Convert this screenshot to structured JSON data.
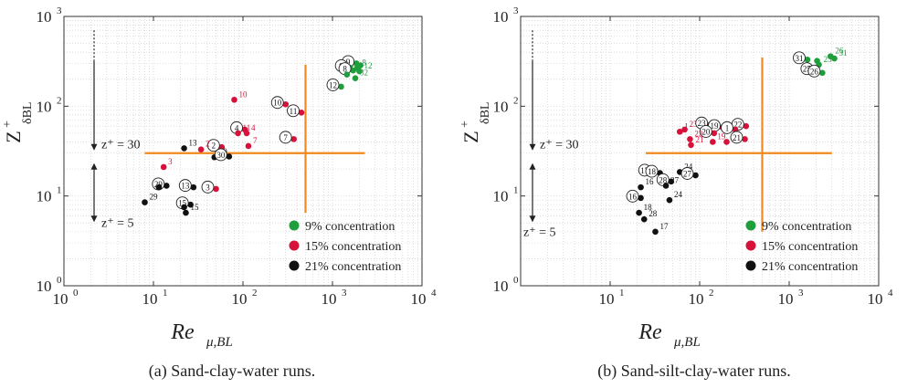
{
  "colors": {
    "c9": "#1f9e3c",
    "c15": "#d6113a",
    "c21": "#111111",
    "line": "#f08a1c",
    "grid": "#cfcfcf",
    "frame": "#333333"
  },
  "chart_data": [
    {
      "type": "scatter",
      "caption": "(a) Sand-clay-water runs.",
      "xlabel": "Re_{μ,BL}",
      "ylabel": "Z^+_{δBL}",
      "xscale": "log",
      "yscale": "log",
      "xlim": [
        1,
        10000
      ],
      "ylim": [
        1,
        1000
      ],
      "x_ticks": [
        "10^0",
        "10^1",
        "10^2",
        "10^3",
        "10^4"
      ],
      "y_ticks": [
        "10^0",
        "10^1",
        "10^2",
        "10^3"
      ],
      "grid": true,
      "legend_position": "bottom-right",
      "annotations": {
        "z30": "z⁺ = 30",
        "z5": "z⁺ = 5"
      },
      "reference_lines": {
        "horizontal": {
          "y": 30,
          "x_from": 8,
          "x_to": 2300
        },
        "vertical": {
          "x": 500,
          "y_from": 6.5,
          "y_to": 290
        }
      },
      "series": [
        {
          "name": "9% concentration",
          "color": "#1f9e3c",
          "points": [
            {
              "x": 1850,
              "y": 300,
              "label": "9",
              "circled": true
            },
            {
              "x": 1550,
              "y": 270,
              "label": "9",
              "circled": true
            },
            {
              "x": 1900,
              "y": 265,
              "label": "8",
              "circled": false
            },
            {
              "x": 1700,
              "y": 250,
              "label": "8",
              "circled": true
            },
            {
              "x": 2000,
              "y": 245,
              "label": "12",
              "circled": false
            },
            {
              "x": 1450,
              "y": 225,
              "label": "9",
              "circled": false
            },
            {
              "x": 1800,
              "y": 205,
              "label": "32",
              "circled": false
            },
            {
              "x": 1250,
              "y": 165,
              "label": "12",
              "circled": true
            },
            {
              "x": 2050,
              "y": 285,
              "label": "",
              "circled": false
            }
          ]
        },
        {
          "name": "15% concentration",
          "color": "#d6113a",
          "points": [
            {
              "x": 80,
              "y": 118,
              "label": "10",
              "circled": false
            },
            {
              "x": 300,
              "y": 105,
              "label": "10",
              "circled": true
            },
            {
              "x": 450,
              "y": 85,
              "label": "11",
              "circled": true
            },
            {
              "x": 105,
              "y": 55,
              "label": "4",
              "circled": true
            },
            {
              "x": 110,
              "y": 50,
              "label": "4",
              "circled": false
            },
            {
              "x": 88,
              "y": 50,
              "label": "11",
              "circled": false
            },
            {
              "x": 370,
              "y": 43,
              "label": "7",
              "circled": true
            },
            {
              "x": 115,
              "y": 36,
              "label": "7",
              "circled": false
            },
            {
              "x": 58,
              "y": 35,
              "label": "2",
              "circled": true
            },
            {
              "x": 34,
              "y": 33,
              "label": "2",
              "circled": false
            },
            {
              "x": 13,
              "y": 21,
              "label": "3",
              "circled": false
            },
            {
              "x": 50,
              "y": 12,
              "label": "3",
              "circled": true
            }
          ]
        },
        {
          "name": "21% concentration",
          "color": "#111111",
          "points": [
            {
              "x": 22,
              "y": 34,
              "label": "13",
              "circled": false
            },
            {
              "x": 48,
              "y": 27,
              "label": "30",
              "circled": false
            },
            {
              "x": 70,
              "y": 27.5,
              "label": "30",
              "circled": true
            },
            {
              "x": 14,
              "y": 13,
              "label": "29",
              "circled": true
            },
            {
              "x": 11.5,
              "y": 12.5,
              "label": "",
              "circled": false
            },
            {
              "x": 28,
              "y": 12.5,
              "label": "13",
              "circled": true
            },
            {
              "x": 8,
              "y": 8.5,
              "label": "29",
              "circled": false
            },
            {
              "x": 26,
              "y": 8,
              "label": "15",
              "circled": true
            },
            {
              "x": 22,
              "y": 7.5,
              "label": "",
              "circled": false
            },
            {
              "x": 23,
              "y": 6.5,
              "label": "15",
              "circled": false
            }
          ]
        }
      ]
    },
    {
      "type": "scatter",
      "caption": "(b) Sand-silt-clay-water runs.",
      "xlabel": "Re_{μ,BL}",
      "ylabel": "Z^+_{δBL}",
      "xscale": "log",
      "yscale": "log",
      "xlim": [
        1,
        10000
      ],
      "ylim": [
        1,
        1000
      ],
      "x_ticks": [
        "10^1",
        "10^2",
        "10^3",
        "10^4"
      ],
      "y_ticks": [
        "10^0",
        "10^1",
        "10^2",
        "10^3"
      ],
      "grid": true,
      "legend_position": "bottom-right",
      "annotations": {
        "z30": "z⁺ = 30",
        "z5": "z⁺ = 5"
      },
      "reference_lines": {
        "horizontal": {
          "y": 30,
          "x_from": 25,
          "x_to": 3000
        },
        "vertical": {
          "x": 500,
          "y_from": 4,
          "y_to": 350
        }
      },
      "series": [
        {
          "name": "9% concentration",
          "color": "#1f9e3c",
          "points": [
            {
              "x": 1600,
              "y": 330,
              "label": "31",
              "circled": true
            },
            {
              "x": 2900,
              "y": 360,
              "label": "26",
              "circled": false
            },
            {
              "x": 3200,
              "y": 340,
              "label": "31",
              "circled": false
            },
            {
              "x": 2050,
              "y": 320,
              "label": "",
              "circled": false
            },
            {
              "x": 2150,
              "y": 290,
              "label": "25",
              "circled": false
            },
            {
              "x": 1950,
              "y": 250,
              "label": "25",
              "circled": true
            },
            {
              "x": 2350,
              "y": 235,
              "label": "26",
              "circled": true
            }
          ]
        },
        {
          "name": "15% concentration",
          "color": "#d6113a",
          "points": [
            {
              "x": 60,
              "y": 52,
              "label": "1",
              "circled": false
            },
            {
              "x": 68,
              "y": 55,
              "label": "23",
              "circled": false
            },
            {
              "x": 130,
              "y": 62,
              "label": "23",
              "circled": true
            },
            {
              "x": 180,
              "y": 58,
              "label": "19",
              "circled": true
            },
            {
              "x": 330,
              "y": 60,
              "label": "22",
              "circled": true
            },
            {
              "x": 250,
              "y": 55,
              "label": "1",
              "circled": true
            },
            {
              "x": 145,
              "y": 50,
              "label": "20",
              "circled": true
            },
            {
              "x": 78,
              "y": 43,
              "label": "22",
              "circled": false
            },
            {
              "x": 80,
              "y": 37,
              "label": "21",
              "circled": false
            },
            {
              "x": 140,
              "y": 40,
              "label": "19",
              "circled": false
            },
            {
              "x": 200,
              "y": 40,
              "label": "20",
              "circled": false
            },
            {
              "x": 320,
              "y": 43,
              "label": "21",
              "circled": true
            }
          ]
        },
        {
          "name": "21% concentration",
          "color": "#111111",
          "points": [
            {
              "x": 30,
              "y": 18.5,
              "label": "17",
              "circled": true
            },
            {
              "x": 36,
              "y": 18,
              "label": "18",
              "circled": true
            },
            {
              "x": 60,
              "y": 18.5,
              "label": "24",
              "circled": false
            },
            {
              "x": 90,
              "y": 17,
              "label": "27",
              "circled": true
            },
            {
              "x": 48,
              "y": 14.5,
              "label": "28",
              "circled": true
            },
            {
              "x": 42,
              "y": 13,
              "label": "27",
              "circled": false
            },
            {
              "x": 46,
              "y": 9,
              "label": "24",
              "circled": false
            },
            {
              "x": 22,
              "y": 12.5,
              "label": "16",
              "circled": false
            },
            {
              "x": 22,
              "y": 9.5,
              "label": "16",
              "circled": true
            },
            {
              "x": 21,
              "y": 6.5,
              "label": "18",
              "circled": false
            },
            {
              "x": 24,
              "y": 5.5,
              "label": "28",
              "circled": false
            },
            {
              "x": 32,
              "y": 4,
              "label": "17",
              "circled": false
            }
          ]
        }
      ]
    }
  ]
}
